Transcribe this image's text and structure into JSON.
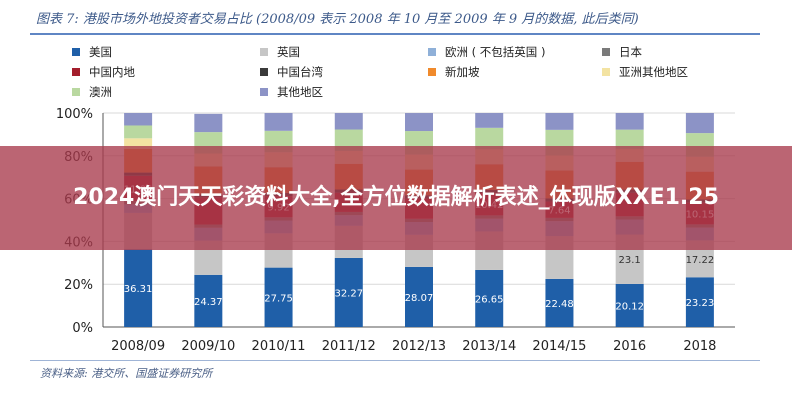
{
  "figure": {
    "title": "图表 7: 港股市场外地投资者交易占比 (2008/09 表示 2008 年 10 月至 2009 年 9 月的数据, 此后类同)",
    "source": "资料来源: 港交所、国盛证券研究所"
  },
  "overlay": {
    "title": "2024澳门天天彩资料大全,全方位数据解析表述_体现版XXE1.25"
  },
  "legend": [
    {
      "label": "美国",
      "color": "#1f5fa8"
    },
    {
      "label": "英国",
      "color": "#c6c6c6"
    },
    {
      "label": "欧洲 ( 不包括英国 )",
      "color": "#8fb0d8"
    },
    {
      "label": "日本",
      "color": "#7a7a7a"
    },
    {
      "label": "中国内地",
      "color": "#a31e2c"
    },
    {
      "label": "中国台湾",
      "color": "#3a3a3a"
    },
    {
      "label": "新加坡",
      "color": "#f08a2c"
    },
    {
      "label": "亚洲其他地区",
      "color": "#f3e3a2"
    },
    {
      "label": "澳洲",
      "color": "#b9d8a0"
    },
    {
      "label": "其他地区",
      "color": "#8c93c6"
    }
  ],
  "chart_data": {
    "type": "bar",
    "stacked": true,
    "categories": [
      "2008/09",
      "2009/10",
      "2010/11",
      "2011/12",
      "2012/13",
      "2013/14",
      "2014/15",
      "2016",
      "2018"
    ],
    "ylim": [
      0,
      100
    ],
    "yticks": [
      "0%",
      "20%",
      "40%",
      "60%",
      "80%",
      "100%"
    ],
    "series": [
      {
        "name": "美国",
        "color": "#1f5fa8",
        "values": [
          36.31,
          24.37,
          27.75,
          32.27,
          28.07,
          26.65,
          22.48,
          20.12,
          23.23
        ],
        "labels": [
          "36.31",
          "24.37",
          "27.75",
          "32.27",
          "28.07",
          "26.65",
          "22.48",
          "20.12",
          "23.23"
        ]
      },
      {
        "name": "英国",
        "color": "#c6c6c6",
        "values": [
          17,
          16,
          16,
          15,
          15,
          18,
          20,
          23.1,
          17.22
        ],
        "labels": [
          "",
          "",
          "",
          "",
          "",
          "",
          "",
          "23.1",
          "17.22"
        ]
      },
      {
        "name": "欧洲 ( 不包括英国 )",
        "color": "#8fb0d8",
        "values": [
          4,
          6,
          6,
          5,
          6,
          6,
          7,
          7,
          6
        ],
        "labels": [
          "",
          "",
          "",
          "",
          "",
          "",
          "",
          "",
          ""
        ]
      },
      {
        "name": "日本",
        "color": "#7a7a7a",
        "values": [
          1.5,
          1.5,
          1.5,
          1.5,
          1.5,
          1.5,
          1.5,
          1.5,
          1.5
        ],
        "labels": [
          "",
          "",
          "",
          "",
          "",
          "",
          "",
          "",
          ""
        ]
      },
      {
        "name": "中国内地",
        "color": "#a31e2c",
        "values": [
          11.86,
          12.7,
          9.92,
          9,
          9.5,
          10.42,
          7.64,
          11,
          10.15
        ],
        "labels": [
          "11.86",
          "",
          "9.92",
          "",
          "",
          "10.42",
          "7.64",
          "",
          "10.15"
        ]
      },
      {
        "name": "中国台湾",
        "color": "#3a3a3a",
        "values": [
          1.5,
          1.5,
          1.5,
          1.5,
          1.5,
          1.5,
          1.5,
          1.5,
          1.5
        ],
        "labels": [
          "",
          "",
          "",
          "",
          "",
          "",
          "",
          "",
          ""
        ]
      },
      {
        "name": "新加坡",
        "color": "#f08a2c",
        "values": [
          11,
          13,
          12,
          12,
          12,
          12,
          13,
          13,
          13
        ],
        "labels": [
          "",
          "",
          "",
          "",
          "",
          "",
          "",
          "",
          ""
        ]
      },
      {
        "name": "亚洲其他地区",
        "color": "#f3e3a2",
        "values": [
          5,
          6,
          7,
          6,
          7,
          7,
          7,
          6,
          7
        ],
        "labels": [
          "",
          "",
          "",
          "",
          "",
          "",
          "",
          "",
          ""
        ]
      },
      {
        "name": "澳洲",
        "color": "#b9d8a0",
        "values": [
          6,
          10,
          10,
          10,
          11,
          10,
          12,
          9,
          11
        ],
        "labels": [
          "",
          "",
          "",
          "",
          "",
          "",
          "",
          "",
          ""
        ]
      },
      {
        "name": "其他地区",
        "color": "#8c93c6",
        "values": [
          5.83,
          8.52,
          8.32,
          7.72,
          8.42,
          6.93,
          7.88,
          7.78,
          9.4
        ],
        "labels": [
          "",
          "",
          "",
          "",
          "",
          "",
          "",
          "",
          ""
        ]
      }
    ]
  }
}
